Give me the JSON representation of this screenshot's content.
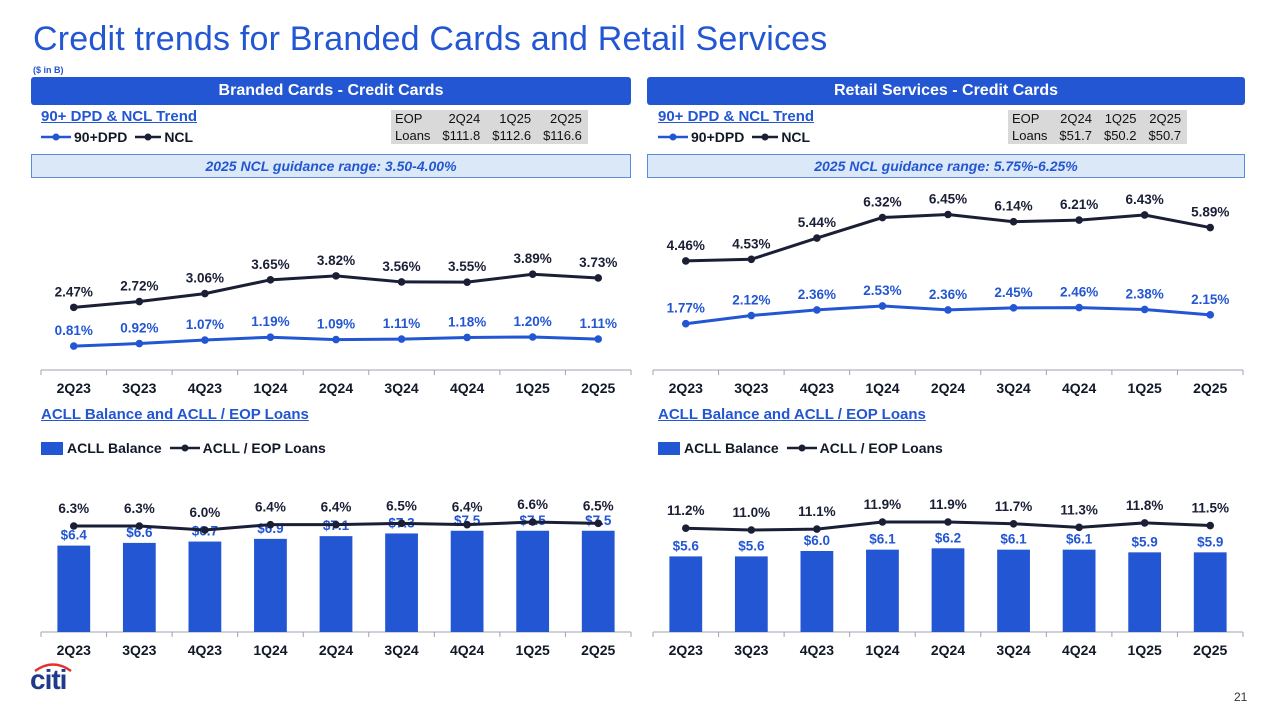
{
  "page": {
    "title": "Credit trends for Branded Cards and Retail Services",
    "units": "($ in B)",
    "page_number": "21",
    "logo_text": "citi"
  },
  "colors": {
    "accent": "#2356d3",
    "dark_line": "#1a1f36",
    "banner": "#2356d3",
    "guidance_bg": "#dbe8f7"
  },
  "panels": {
    "branded": {
      "banner": "Branded Cards - Credit Cards",
      "trend_title": "90+ DPD & NCL Trend",
      "legend_dpd": "90+DPD",
      "legend_ncl": "NCL",
      "eop_header": [
        "EOP",
        "2Q24",
        "1Q25",
        "2Q25"
      ],
      "eop_loans": [
        "Loans",
        "$111.8",
        "$112.6",
        "$116.6"
      ],
      "guidance": "2025 NCL guidance range: 3.50-4.00%",
      "acll_title": "ACLL Balance and ACLL / EOP Loans",
      "legend_acll": "ACLL Balance",
      "legend_ratio": "ACLL / EOP Loans"
    },
    "retail": {
      "banner": "Retail Services - Credit Cards",
      "trend_title": "90+ DPD & NCL Trend",
      "legend_dpd": "90+DPD",
      "legend_ncl": "NCL",
      "eop_header": [
        "EOP",
        "2Q24",
        "1Q25",
        "2Q25"
      ],
      "eop_loans": [
        "Loans",
        "$51.7",
        "$50.2",
        "$50.7"
      ],
      "guidance": "2025 NCL guidance range: 5.75%-6.25%",
      "acll_title": "ACLL Balance and ACLL / EOP Loans",
      "legend_acll": "ACLL Balance",
      "legend_ratio": "ACLL / EOP Loans"
    }
  },
  "chart_data": [
    {
      "id": "branded-trend",
      "type": "line",
      "title": "90+ DPD & NCL Trend",
      "categories": [
        "2Q23",
        "3Q23",
        "4Q23",
        "1Q24",
        "2Q24",
        "3Q24",
        "4Q24",
        "1Q25",
        "2Q25"
      ],
      "series": [
        {
          "name": "NCL",
          "values": [
            2.47,
            2.72,
            3.06,
            3.65,
            3.82,
            3.56,
            3.55,
            3.89,
            3.73
          ],
          "labels": [
            "2.47%",
            "2.72%",
            "3.06%",
            "3.65%",
            "3.82%",
            "3.56%",
            "3.55%",
            "3.89%",
            "3.73%"
          ]
        },
        {
          "name": "90+DPD",
          "values": [
            0.81,
            0.92,
            1.07,
            1.19,
            1.09,
            1.11,
            1.18,
            1.2,
            1.11
          ],
          "labels": [
            "0.81%",
            "0.92%",
            "1.07%",
            "1.19%",
            "1.09%",
            "1.11%",
            "1.18%",
            "1.20%",
            "1.11%"
          ]
        }
      ],
      "ylim": [
        0,
        7.5
      ]
    },
    {
      "id": "retail-trend",
      "type": "line",
      "title": "90+ DPD & NCL Trend",
      "categories": [
        "2Q23",
        "3Q23",
        "4Q23",
        "1Q24",
        "2Q24",
        "3Q24",
        "4Q24",
        "1Q25",
        "2Q25"
      ],
      "series": [
        {
          "name": "NCL",
          "values": [
            4.46,
            4.53,
            5.44,
            6.32,
            6.45,
            6.14,
            6.21,
            6.43,
            5.89
          ],
          "labels": [
            "4.46%",
            "4.53%",
            "5.44%",
            "6.32%",
            "6.45%",
            "6.14%",
            "6.21%",
            "6.43%",
            "5.89%"
          ]
        },
        {
          "name": "90+DPD",
          "values": [
            1.77,
            2.12,
            2.36,
            2.53,
            2.36,
            2.45,
            2.46,
            2.38,
            2.15
          ],
          "labels": [
            "1.77%",
            "2.12%",
            "2.36%",
            "2.53%",
            "2.36%",
            "2.45%",
            "2.46%",
            "2.38%",
            "2.15%"
          ]
        }
      ],
      "ylim": [
        0,
        7.5
      ]
    },
    {
      "id": "branded-acll",
      "type": "bar",
      "title": "ACLL Balance and ACLL / EOP Loans",
      "categories": [
        "2Q23",
        "3Q23",
        "4Q23",
        "1Q24",
        "2Q24",
        "3Q24",
        "4Q24",
        "1Q25",
        "2Q25"
      ],
      "bars": {
        "name": "ACLL Balance",
        "values": [
          6.4,
          6.6,
          6.7,
          6.9,
          7.1,
          7.3,
          7.5,
          7.5,
          7.5
        ],
        "labels": [
          "$6.4",
          "$6.6",
          "$6.7",
          "$6.9",
          "$7.1",
          "$7.3",
          "$7.5",
          "$7.5",
          "$7.5"
        ]
      },
      "line": {
        "name": "ACLL / EOP Loans",
        "values": [
          6.3,
          6.3,
          6.0,
          6.4,
          6.4,
          6.5,
          6.4,
          6.6,
          6.5
        ],
        "labels": [
          "6.3%",
          "6.3%",
          "6.0%",
          "6.4%",
          "6.4%",
          "6.5%",
          "6.4%",
          "6.6%",
          "6.5%"
        ]
      }
    },
    {
      "id": "retail-acll",
      "type": "bar",
      "title": "ACLL Balance and ACLL / EOP Loans",
      "categories": [
        "2Q23",
        "3Q23",
        "4Q23",
        "1Q24",
        "2Q24",
        "3Q24",
        "4Q24",
        "1Q25",
        "2Q25"
      ],
      "bars": {
        "name": "ACLL Balance",
        "values": [
          5.6,
          5.6,
          6.0,
          6.1,
          6.2,
          6.1,
          6.1,
          5.9,
          5.9
        ],
        "labels": [
          "$5.6",
          "$5.6",
          "$6.0",
          "$6.1",
          "$6.2",
          "$6.1",
          "$6.1",
          "$5.9",
          "$5.9"
        ]
      },
      "line": {
        "name": "ACLL / EOP Loans",
        "values": [
          11.2,
          11.0,
          11.1,
          11.9,
          11.9,
          11.7,
          11.3,
          11.8,
          11.5
        ],
        "labels": [
          "11.2%",
          "11.0%",
          "11.1%",
          "11.9%",
          "11.9%",
          "11.7%",
          "11.3%",
          "11.8%",
          "11.5%"
        ]
      }
    }
  ]
}
